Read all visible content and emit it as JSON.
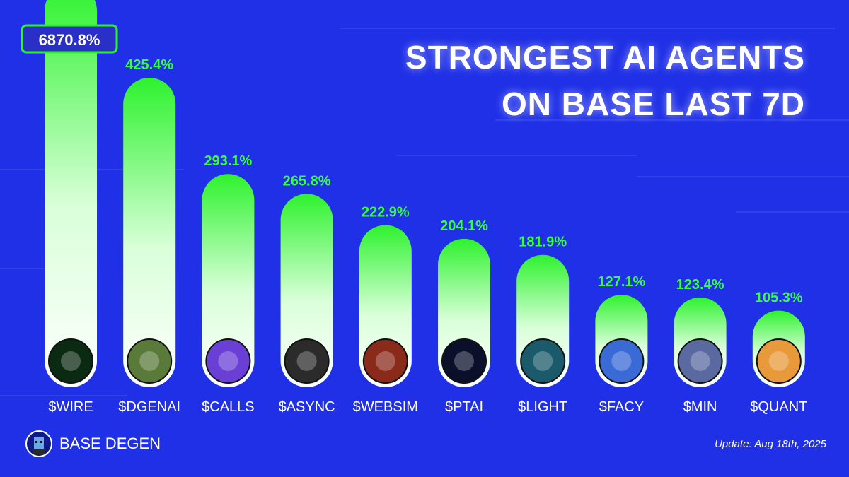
{
  "header": {
    "title_line1": "STRONGEST AI AGENTS",
    "title_line2": "ON BASE LAST 7D"
  },
  "footer": {
    "brand": "BASE DEGEN",
    "update": "Update: Aug 18th, 2025"
  },
  "colors": {
    "background": "#1f30e6",
    "bar_top": "#2ef22e",
    "bar_bottom": "#ffffff",
    "value_text": "#39ff39",
    "label_text": "#ffffff"
  },
  "chart_data": {
    "type": "bar",
    "title": "STRONGEST AI AGENTS ON BASE LAST 7D",
    "xlabel": "",
    "ylabel": "",
    "categories": [
      "$WIRE",
      "$DGENAI",
      "$CALLS",
      "$ASYNC",
      "$WEBSIM",
      "$PTAI",
      "$LIGHT",
      "$FACY",
      "$MIN",
      "$QUANT"
    ],
    "values": [
      6870.8,
      425.4,
      293.1,
      265.8,
      222.9,
      204.1,
      181.9,
      127.1,
      123.4,
      105.3
    ],
    "value_labels": [
      "6870.8%",
      "425.4%",
      "293.1%",
      "265.8%",
      "222.9%",
      "204.1%",
      "181.9%",
      "127.1%",
      "123.4%",
      "105.3%"
    ],
    "icons": [
      "green-alien-icon",
      "pepe-frog-icon",
      "purple-ring-icon",
      "async-logo-icon",
      "demon-hacker-icon",
      "ptai-logo-icon",
      "glowing-figure-icon",
      "facy-face-icon",
      "cosmic-head-icon",
      "quant-woman-icon"
    ],
    "icon_colors": [
      "#0b2a12",
      "#5a7a3a",
      "#6a3fd6",
      "#2b2b2b",
      "#8a2a1a",
      "#0a0f2a",
      "#1a5a6a",
      "#3a6ad6",
      "#5a6aa0",
      "#e89a3a"
    ],
    "note": "$WIRE bar extends beyond the top of the frame"
  }
}
